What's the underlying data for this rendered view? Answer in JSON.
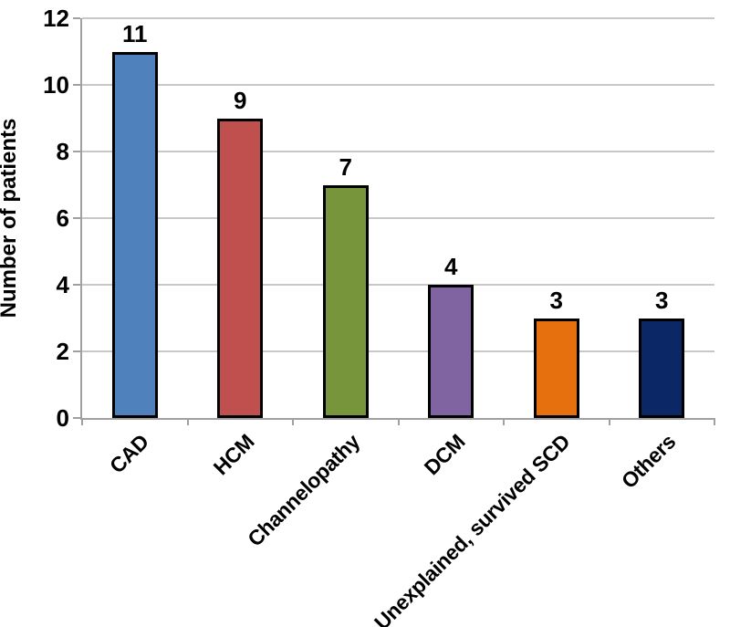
{
  "chart_data": {
    "type": "bar",
    "title": "",
    "xlabel": "",
    "ylabel": "Number of patients",
    "categories": [
      "CAD",
      "HCM",
      "Channelopathy",
      "DCM",
      "Unexplained, survived SCD",
      "Others"
    ],
    "values": [
      11,
      9,
      7,
      4,
      3,
      3
    ],
    "data_labels": [
      "11",
      "9",
      "7",
      "4",
      "3",
      "3"
    ],
    "ytick_labels": [
      "0",
      "2",
      "4",
      "6",
      "8",
      "10",
      "12"
    ],
    "yticks": [
      0,
      2,
      4,
      6,
      8,
      10,
      12
    ],
    "ylim": [
      0,
      12
    ],
    "grid": "horizontal",
    "legend_position": "none",
    "bar_colors": [
      "#4F81BD",
      "#C0504D",
      "#77963C",
      "#8064A2",
      "#E5700D",
      "#0B2766"
    ],
    "bar_border_color": "#000000",
    "gridline_color": "#C8C8C8",
    "axis_line_color": "#A0A0A0",
    "background_color": "#FFFFFF",
    "label_color": "#000000"
  }
}
